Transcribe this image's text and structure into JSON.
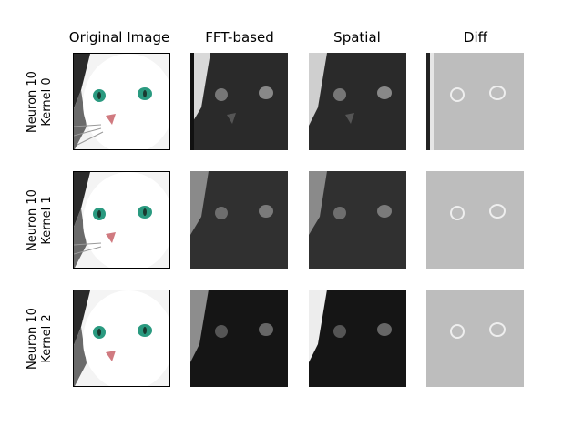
{
  "columns": [
    "Original Image",
    "FFT-based",
    "Spatial",
    "Diff"
  ],
  "rows": [
    {
      "line1": "Neuron 10",
      "line2": "Kernel 0"
    },
    {
      "line1": "Neuron 10",
      "line2": "Kernel 1"
    },
    {
      "line1": "Neuron 10",
      "line2": "Kernel 2"
    }
  ],
  "colors": {
    "eye": "#2a9a80",
    "nose": "#d07a80",
    "dark_face": "#2a2a2a",
    "diff_bg": "#bdbdbd"
  }
}
